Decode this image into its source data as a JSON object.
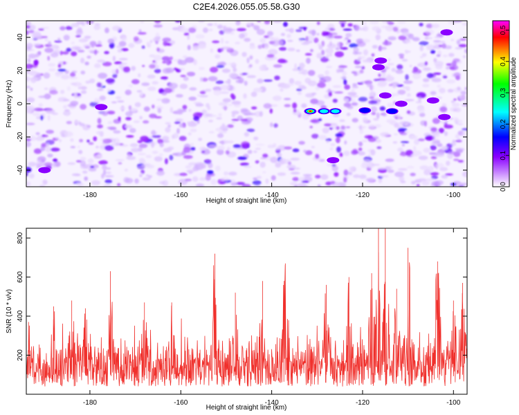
{
  "chart_data": [
    {
      "type": "heatmap",
      "title": "C2E4.2026.055.05.58.G30",
      "xlabel": "Height of straight line (km)",
      "ylabel": "Frequency (Hz)",
      "xlim": [
        -194,
        -97
      ],
      "ylim": [
        -50,
        50
      ],
      "xticks": [
        "-180",
        "-160",
        "-140",
        "-120",
        "-100"
      ],
      "yticks": [
        "-40",
        "-20",
        "0",
        "20",
        "40"
      ],
      "colorbar": {
        "label": "Normalized spectral amplitude",
        "range": [
          0,
          0.53
        ],
        "ticks": [
          "0.0",
          "0.1",
          "0.2",
          "0.3",
          "0.4",
          "0.5"
        ],
        "colors": [
          "#ffffff",
          "#8a00ff",
          "#0000ff",
          "#00ffff",
          "#00ff00",
          "#ffff00",
          "#ff0000",
          "#ff00ff"
        ]
      },
      "hotspots": [
        {
          "x": -131.5,
          "y": -4.5,
          "amplitude": 0.5
        },
        {
          "x": -126,
          "y": -4.5,
          "amplitude": 0.3
        },
        {
          "x": -128.5,
          "y": -4.5,
          "amplitude": 0.25
        },
        {
          "x": -119.5,
          "y": -4,
          "amplitude": 0.2
        },
        {
          "x": -113.5,
          "y": -4.5,
          "amplitude": 0.16
        },
        {
          "x": -190,
          "y": -40,
          "amplitude": 0.14
        },
        {
          "x": -102,
          "y": -8,
          "amplitude": 0.14
        },
        {
          "x": -177.5,
          "y": -2,
          "amplitude": 0.12
        },
        {
          "x": -104.5,
          "y": 2,
          "amplitude": 0.12
        },
        {
          "x": -116.5,
          "y": 22,
          "amplitude": 0.12
        },
        {
          "x": -116,
          "y": 26,
          "amplitude": 0.1
        },
        {
          "x": -111.5,
          "y": 0,
          "amplitude": 0.1
        },
        {
          "x": -101.5,
          "y": 43,
          "amplitude": 0.12
        },
        {
          "x": -126.5,
          "y": -34,
          "amplitude": 0.1
        },
        {
          "x": -115,
          "y": 5,
          "amplitude": 0.1
        },
        {
          "x": -186,
          "y": -32,
          "amplitude": 0.09
        }
      ]
    },
    {
      "type": "line",
      "xlabel": "Height of straight line (km)",
      "ylabel": "SNR (10 * v/v)",
      "xlim": [
        -194,
        -97
      ],
      "ylim": [
        0,
        850
      ],
      "xticks": [
        "-180",
        "-160",
        "-140",
        "-120",
        "-100"
      ],
      "yticks": [
        "200",
        "400",
        "600",
        "800"
      ],
      "color": "#f0302c",
      "baseline_range": [
        40,
        300
      ],
      "peaks": [
        {
          "x": -193.5,
          "y": 370
        },
        {
          "x": -188,
          "y": 450
        },
        {
          "x": -184,
          "y": 480
        },
        {
          "x": -181,
          "y": 440
        },
        {
          "x": -175.5,
          "y": 630
        },
        {
          "x": -168,
          "y": 470
        },
        {
          "x": -162,
          "y": 470
        },
        {
          "x": -152.5,
          "y": 720
        },
        {
          "x": -148,
          "y": 520
        },
        {
          "x": -142,
          "y": 580
        },
        {
          "x": -137,
          "y": 670
        },
        {
          "x": -128,
          "y": 560
        },
        {
          "x": -123,
          "y": 600
        },
        {
          "x": -118,
          "y": 620
        },
        {
          "x": -116.5,
          "y": 850
        },
        {
          "x": -115,
          "y": 860
        },
        {
          "x": -112.5,
          "y": 540
        },
        {
          "x": -110,
          "y": 750
        },
        {
          "x": -103.5,
          "y": 680
        },
        {
          "x": -100,
          "y": 480
        },
        {
          "x": -98,
          "y": 570
        }
      ]
    }
  ]
}
